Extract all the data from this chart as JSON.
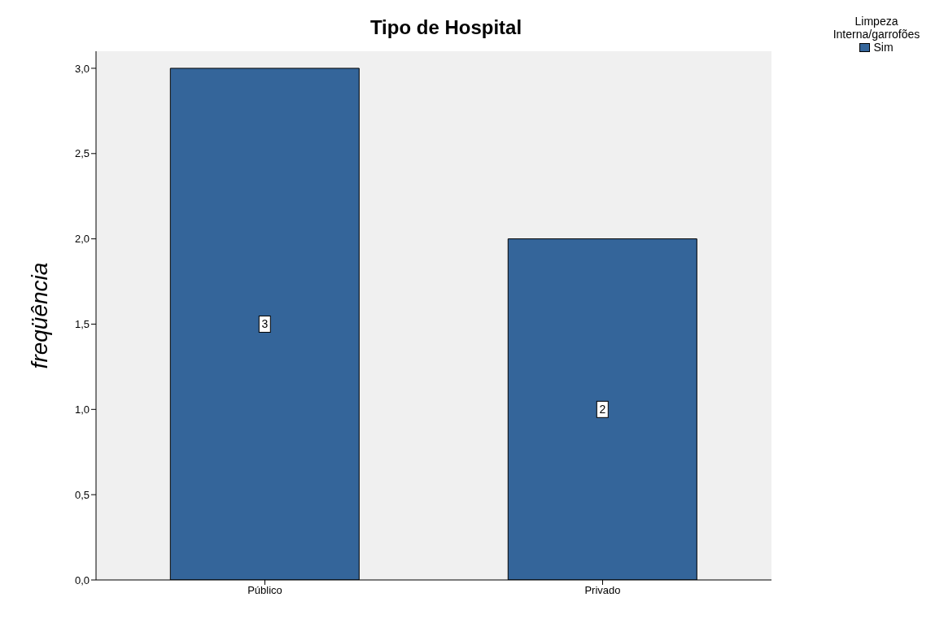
{
  "chart_data": {
    "type": "bar",
    "title": "Tipo de Hospital",
    "ylabel": "freqüência",
    "legend_title": "Limpeza Interna/garrofões",
    "categories": [
      "Público",
      "Privado"
    ],
    "series": [
      {
        "name": "Sim",
        "color": "#34659a",
        "values": [
          3,
          2
        ]
      }
    ],
    "ylim": [
      0,
      3.1
    ],
    "yticks": [
      {
        "value": 0,
        "label": "0,0"
      },
      {
        "value": 0.5,
        "label": "0,5"
      },
      {
        "value": 1,
        "label": "1,0"
      },
      {
        "value": 1.5,
        "label": "1,5"
      },
      {
        "value": 2,
        "label": "2,0"
      },
      {
        "value": 2.5,
        "label": "2,5"
      },
      {
        "value": 3,
        "label": "3,0"
      }
    ],
    "grid": false,
    "legend": "top right",
    "data_labels": true
  }
}
